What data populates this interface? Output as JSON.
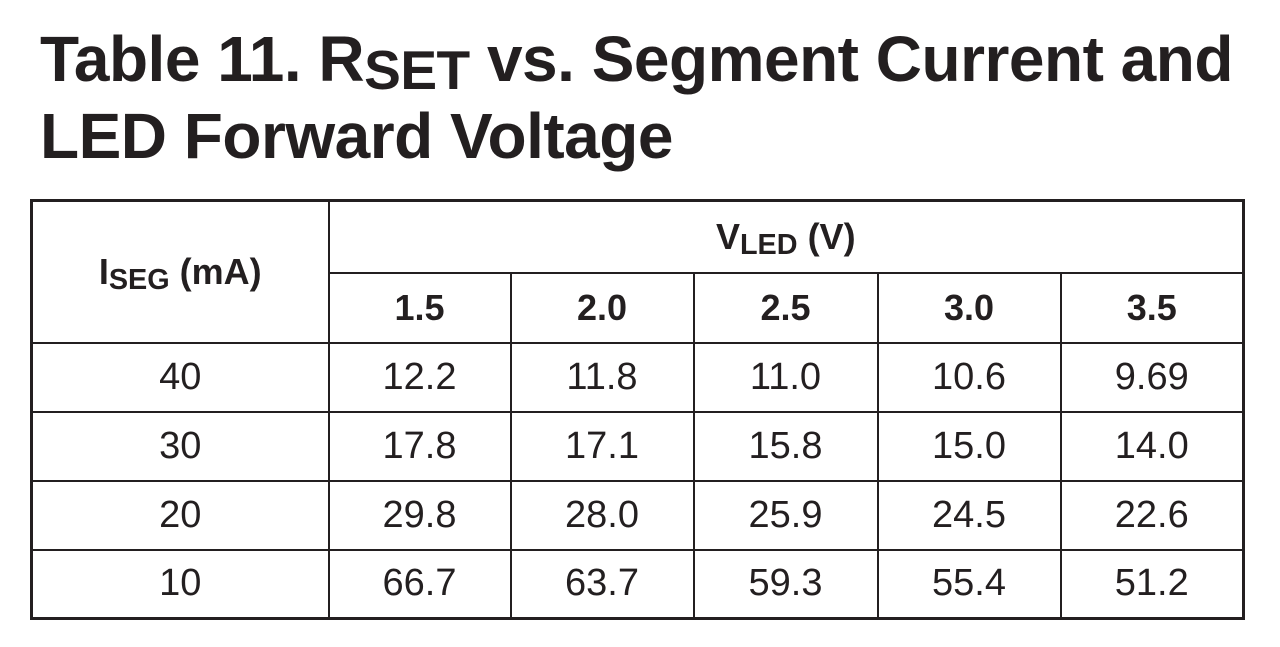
{
  "title": {
    "prefix": "Table 11. R",
    "subscript": "SET",
    "suffix": " vs. Segment Current and",
    "line2": "LED Forward Voltage"
  },
  "table": {
    "row_header": {
      "prefix": "I",
      "subscript": "SEG",
      "suffix": " (mA)"
    },
    "group_header": {
      "prefix": "V",
      "subscript": "LED",
      "suffix": " (V)"
    },
    "columns": [
      "1.5",
      "2.0",
      "2.5",
      "3.0",
      "3.5"
    ],
    "rows": [
      {
        "iseg": "40",
        "values": [
          "12.2",
          "11.8",
          "11.0",
          "10.6",
          "9.69"
        ]
      },
      {
        "iseg": "30",
        "values": [
          "17.8",
          "17.1",
          "15.8",
          "15.0",
          "14.0"
        ]
      },
      {
        "iseg": "20",
        "values": [
          "29.8",
          "28.0",
          "25.9",
          "24.5",
          "22.6"
        ]
      },
      {
        "iseg": "10",
        "values": [
          "66.7",
          "63.7",
          "59.3",
          "55.4",
          "51.2"
        ]
      }
    ]
  }
}
